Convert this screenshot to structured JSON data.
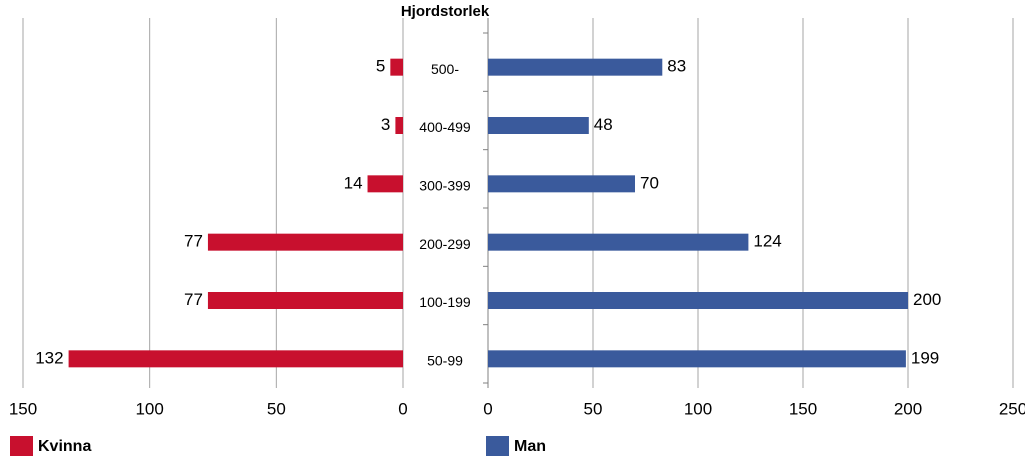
{
  "chart_data": [
    {
      "type": "bar",
      "orientation": "horizontal",
      "x_reversed": true,
      "title": "Hjordstorlek",
      "categories": [
        "500-",
        "400-499",
        "300-399",
        "200-299",
        "100-199",
        "50-99"
      ],
      "series": [
        {
          "name": "Kvinna",
          "color": "#c8102e",
          "values": [
            5,
            3,
            14,
            77,
            77,
            132
          ]
        }
      ],
      "xlim": [
        0,
        150
      ],
      "xticks": [
        0,
        50,
        100,
        150
      ],
      "grid": true
    },
    {
      "type": "bar",
      "orientation": "horizontal",
      "x_reversed": false,
      "series": [
        {
          "name": "Man",
          "color": "#3a5a9c",
          "values": [
            83,
            48,
            70,
            124,
            200,
            199
          ]
        }
      ],
      "xlim": [
        0,
        250
      ],
      "xticks": [
        0,
        50,
        100,
        150,
        200,
        250
      ],
      "grid": true
    }
  ]
}
